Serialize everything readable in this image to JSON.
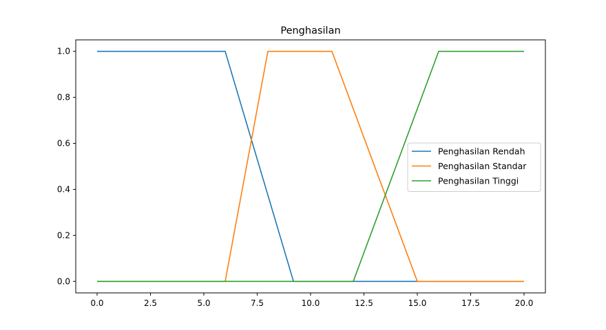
{
  "chart_data": {
    "type": "line",
    "title": "Penghasilan",
    "xlabel": "",
    "ylabel": "",
    "xlim": [
      -1,
      21
    ],
    "ylim": [
      -0.05,
      1.05
    ],
    "xticks": [
      0.0,
      2.5,
      5.0,
      7.5,
      10.0,
      12.5,
      15.0,
      17.5,
      20.0
    ],
    "xtick_labels": [
      "0.0",
      "2.5",
      "5.0",
      "7.5",
      "10.0",
      "12.5",
      "15.0",
      "17.5",
      "20.0"
    ],
    "yticks": [
      0.0,
      0.2,
      0.4,
      0.6,
      0.8,
      1.0
    ],
    "ytick_labels": [
      "0.0",
      "0.2",
      "0.4",
      "0.6",
      "0.8",
      "1.0"
    ],
    "grid": false,
    "legend_position": "center-right",
    "series": [
      {
        "name": "Penghasilan Rendah",
        "color": "#1f77b4",
        "points": [
          [
            0,
            1
          ],
          [
            6,
            1
          ],
          [
            9.2,
            0
          ],
          [
            20,
            0
          ]
        ]
      },
      {
        "name": "Penghasilan Standar",
        "color": "#ff7f0e",
        "points": [
          [
            0,
            0
          ],
          [
            6,
            0
          ],
          [
            8,
            1
          ],
          [
            11,
            1
          ],
          [
            15,
            0
          ],
          [
            20,
            0
          ]
        ]
      },
      {
        "name": "Penghasilan Tinggi",
        "color": "#2ca02c",
        "points": [
          [
            0,
            0
          ],
          [
            12,
            0
          ],
          [
            16,
            1
          ],
          [
            20,
            1
          ]
        ]
      }
    ]
  }
}
